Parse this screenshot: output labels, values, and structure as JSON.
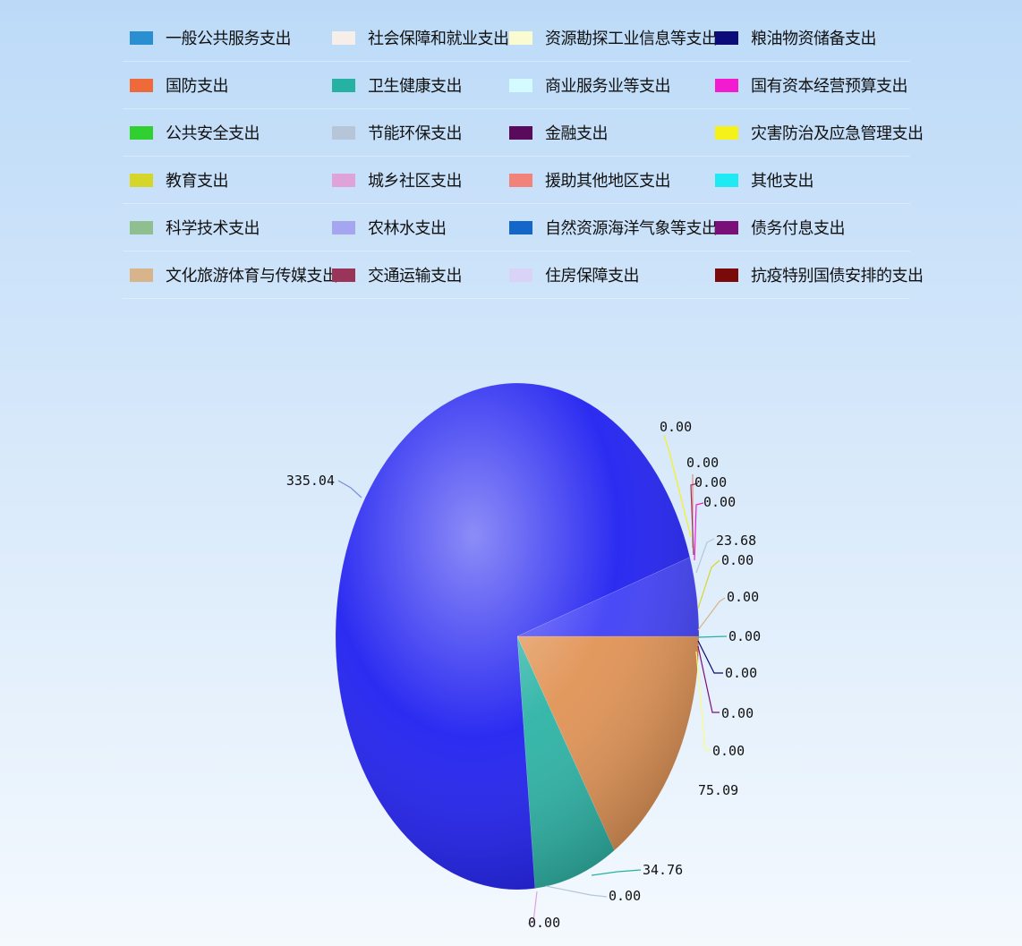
{
  "chart_data": {
    "type": "pie",
    "legend_position": "top",
    "categories": [
      "一般公共服务支出",
      "社会保障和就业支出",
      "资源勘探工业信息等支出",
      "粮油物资储备支出",
      "国防支出",
      "卫生健康支出",
      "商业服务业等支出",
      "国有资本经营预算支出",
      "公共安全支出",
      "节能环保支出",
      "金融支出",
      "灾害防治及应急管理支出",
      "教育支出",
      "城乡社区支出",
      "援助其他地区支出",
      "其他支出",
      "科学技术支出",
      "农林水支出",
      "自然资源海洋气象等支出",
      "债务付息支出",
      "文化旅游体育与传媒支出",
      "交通运输支出",
      "住房保障支出",
      "抗疫特别国债安排的支出"
    ],
    "colors": [
      "#2a8fd0",
      "#f6efe9",
      "#fbfbd2",
      "#0b0b7a",
      "#ef6a3a",
      "#26b1a3",
      "#d4fbff",
      "#f21bd0",
      "#2fd02f",
      "#b7c5d8",
      "#5a0a5a",
      "#f5f21a",
      "#d6d62a",
      "#e0a3d8",
      "#f2837b",
      "#1fe9f2",
      "#8fbf8f",
      "#a6a6f0",
      "#1466c8",
      "#7a0f7a",
      "#d8b48a",
      "#9a3559",
      "#d9d4f7",
      "#7a0a0a"
    ],
    "slices": [
      {
        "name": "一般公共服务支出",
        "value": 335.04,
        "label": "335.04",
        "color": "#1a1af0"
      },
      {
        "name": "城乡社区支出",
        "value": 75.09,
        "label": "75.09",
        "color": "#e09050"
      },
      {
        "name": "卫生健康支出",
        "value": 34.76,
        "label": "34.76",
        "color": "#26b1a3"
      },
      {
        "name": "文化旅游体育与传媒支出",
        "value": 23.68,
        "label": "23.68",
        "color": "#3a3af6"
      }
    ],
    "zero_labels": [
      "0.00",
      "0.00",
      "0.00",
      "0.00",
      "0.00",
      "0.00",
      "0.00",
      "0.00",
      "0.00",
      "0.00",
      "0.00",
      "0.00"
    ]
  }
}
